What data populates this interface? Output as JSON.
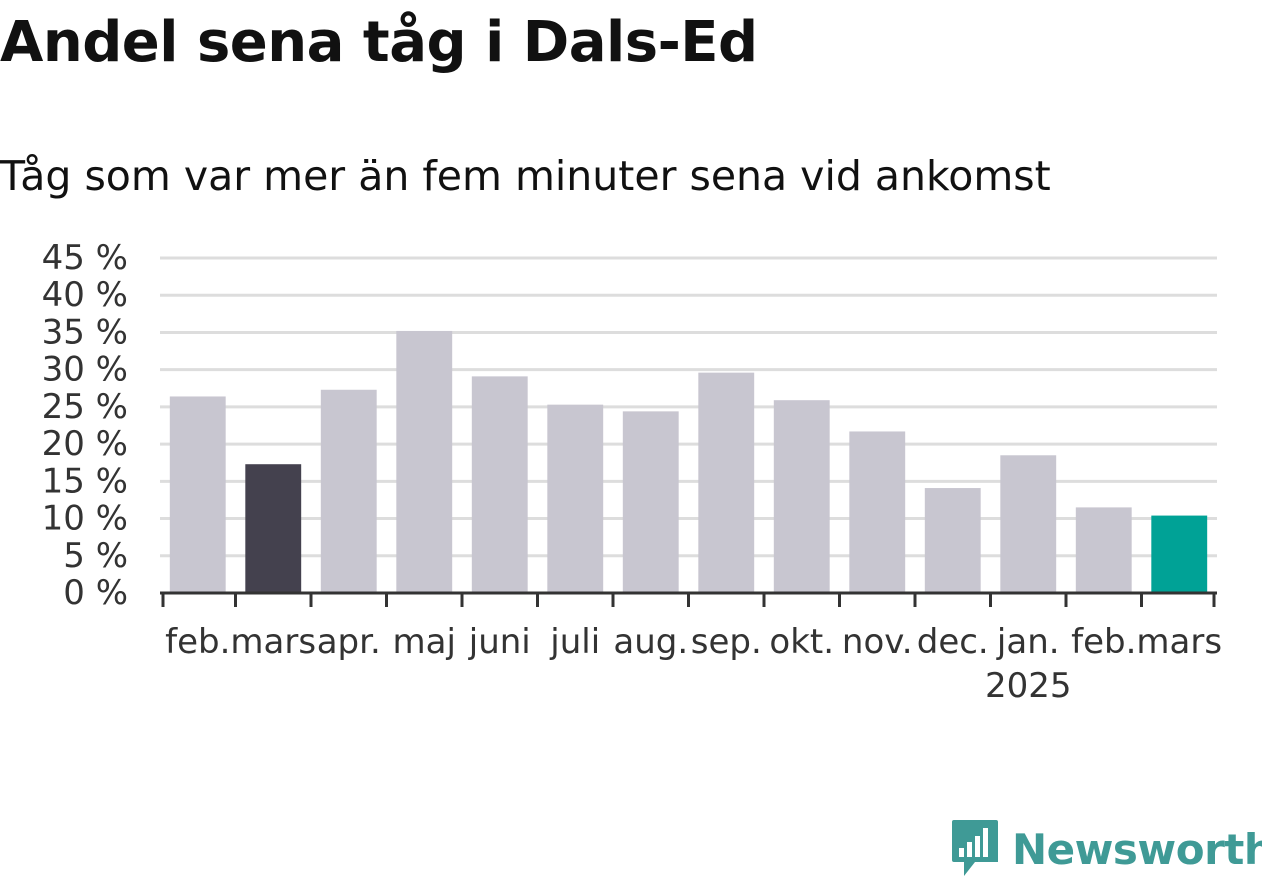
{
  "title": "Andel sena tåg i Dals-Ed",
  "subtitle": "Tåg som var mer än fem minuter sena vid ankomst",
  "logo": {
    "name": "Newsworthy",
    "icon": "newsworthy-chart-icon",
    "color": "#3f9a96"
  },
  "colors": {
    "default_bar": "#c8c6d0",
    "highlight_prev": "#44414e",
    "highlight_current": "#00a296",
    "grid": "#dddddd",
    "axis": "#333333"
  },
  "chart_data": {
    "type": "bar",
    "title": "Andel sena tåg i Dals-Ed",
    "subtitle": "Tåg som var mer än fem minuter sena vid ankomst",
    "categories": [
      "feb.",
      "mars",
      "apr.",
      "maj",
      "juni",
      "juli",
      "aug.",
      "sep.",
      "okt.",
      "nov.",
      "dec.",
      "jan.",
      "feb.",
      "mars"
    ],
    "year_labels": [
      "",
      "",
      "",
      "",
      "",
      "",
      "",
      "",
      "",
      "",
      "",
      "2025",
      "",
      ""
    ],
    "values": [
      26.4,
      17.3,
      27.3,
      35.2,
      29.1,
      25.3,
      24.4,
      29.6,
      25.9,
      21.7,
      14.1,
      18.5,
      11.5,
      10.4
    ],
    "highlight": [
      "default",
      "previous",
      "default",
      "default",
      "default",
      "default",
      "default",
      "default",
      "default",
      "default",
      "default",
      "default",
      "default",
      "current"
    ],
    "ylim": [
      0,
      45
    ],
    "yticks": [
      0,
      5,
      10,
      15,
      20,
      25,
      30,
      35,
      40,
      45
    ],
    "ytick_suffix": " %",
    "xlabel": "",
    "ylabel": "",
    "grid": true
  }
}
